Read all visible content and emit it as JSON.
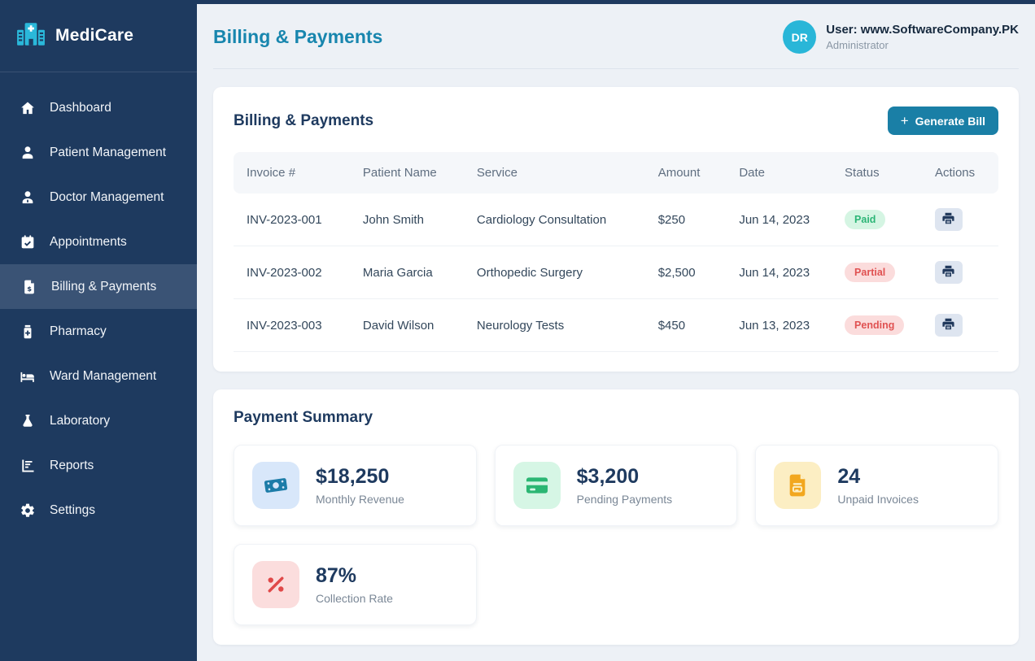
{
  "app": {
    "name": "MediCare",
    "logo_icon": "hospital-icon"
  },
  "colors": {
    "sidebar_bg": "#1e3a5f",
    "sidebar_active_bg": "#3a5375",
    "brand_cyan": "#29b6d8",
    "page_title": "#1886ae",
    "primary_button": "#1a7fa6",
    "status_paid_bg": "#d5f5e3",
    "status_paid_text": "#2cb576",
    "status_alert_bg": "#fbdcdc",
    "status_alert_text": "#e05252",
    "stat_blue": "#1c7ca8",
    "stat_green": "#2bb673",
    "stat_yellow": "#f2a71f",
    "stat_red": "#e04848"
  },
  "sidebar": {
    "items": [
      {
        "label": "Dashboard",
        "icon": "home-icon",
        "active": false
      },
      {
        "label": "Patient Management",
        "icon": "patient-icon",
        "active": false
      },
      {
        "label": "Doctor Management",
        "icon": "doctor-icon",
        "active": false
      },
      {
        "label": "Appointments",
        "icon": "calendar-check-icon",
        "active": false
      },
      {
        "label": "Billing & Payments",
        "icon": "invoice-dollar-icon",
        "active": true
      },
      {
        "label": "Pharmacy",
        "icon": "medicine-bottle-icon",
        "active": false
      },
      {
        "label": "Ward Management",
        "icon": "bed-icon",
        "active": false
      },
      {
        "label": "Laboratory",
        "icon": "flask-icon",
        "active": false
      },
      {
        "label": "Reports",
        "icon": "report-chart-icon",
        "active": false
      },
      {
        "label": "Settings",
        "icon": "gear-icon",
        "active": false
      }
    ]
  },
  "header": {
    "title": "Billing & Payments",
    "user": {
      "avatar_initials": "DR",
      "name_label": "User:",
      "name": "www.SoftwareCompany.PK",
      "role": "Administrator"
    }
  },
  "billing": {
    "heading": "Billing & Payments",
    "generate_button_label": "Generate Bill",
    "generate_button_icon": "plus-icon",
    "table": {
      "columns": [
        "Invoice #",
        "Patient Name",
        "Service",
        "Amount",
        "Date",
        "Status",
        "Actions"
      ],
      "action_icon": "printer-icon",
      "rows": [
        {
          "invoice": "INV-2023-001",
          "patient": "John Smith",
          "service": "Cardiology Consultation",
          "amount": "$250",
          "date": "Jun 14, 2023",
          "status": "Paid",
          "status_type": "paid"
        },
        {
          "invoice": "INV-2023-002",
          "patient": "Maria Garcia",
          "service": "Orthopedic Surgery",
          "amount": "$2,500",
          "date": "Jun 14, 2023",
          "status": "Partial",
          "status_type": "partial"
        },
        {
          "invoice": "INV-2023-003",
          "patient": "David Wilson",
          "service": "Neurology Tests",
          "amount": "$450",
          "date": "Jun 13, 2023",
          "status": "Pending",
          "status_type": "pending"
        }
      ]
    }
  },
  "payment_summary": {
    "heading": "Payment Summary",
    "cards": [
      {
        "value": "$18,250",
        "label": "Monthly Revenue",
        "icon": "cash-icon",
        "theme": "blue"
      },
      {
        "value": "$3,200",
        "label": "Pending Payments",
        "icon": "credit-card-icon",
        "theme": "green"
      },
      {
        "value": "24",
        "label": "Unpaid Invoices",
        "icon": "invoice-file-icon",
        "theme": "yellow"
      },
      {
        "value": "87%",
        "label": "Collection Rate",
        "icon": "percent-icon",
        "theme": "red"
      }
    ]
  }
}
